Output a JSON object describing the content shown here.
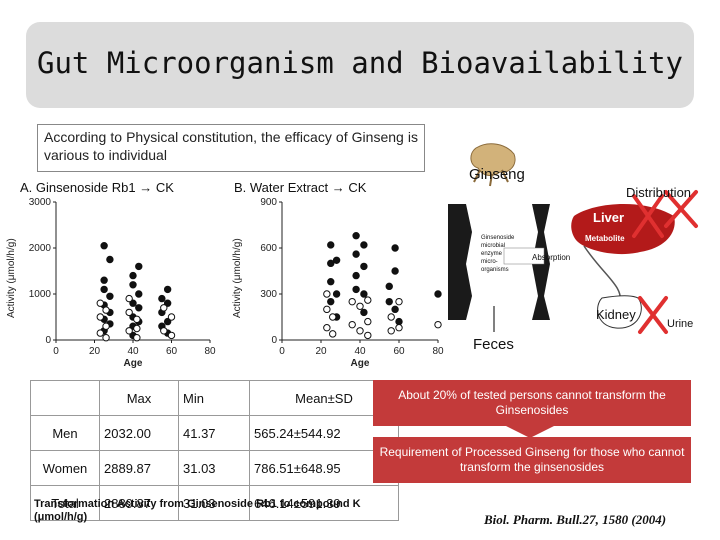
{
  "title": "Gut Microorganism and Bioavailability",
  "intro": "According to Physical constitution, the efficacy of Ginseng is various to individual",
  "chart_data": [
    {
      "type": "scatter",
      "title": "A. Ginsenoside Rb1 → CK",
      "xlabel": "Age",
      "ylabel": "Activity (μmol/h/g)",
      "xticks": [
        "0",
        "20",
        "40",
        "60",
        "80"
      ],
      "yticks": [
        "0",
        "1000",
        "2000",
        "3000"
      ],
      "xlim": [
        0,
        80
      ],
      "ylim": [
        0,
        3000
      ],
      "series": [
        {
          "marker": "filled",
          "points": [
            [
              25,
              2050
            ],
            [
              25,
              1300
            ],
            [
              25,
              1100
            ],
            [
              25,
              760
            ],
            [
              25,
              450
            ],
            [
              25,
              200
            ],
            [
              28,
              1750
            ],
            [
              28,
              950
            ],
            [
              28,
              600
            ],
            [
              28,
              350
            ],
            [
              40,
              1400
            ],
            [
              40,
              1200
            ],
            [
              40,
              800
            ],
            [
              40,
              500
            ],
            [
              40,
              300
            ],
            [
              40,
              100
            ],
            [
              43,
              1600
            ],
            [
              43,
              1000
            ],
            [
              43,
              700
            ],
            [
              43,
              400
            ],
            [
              55,
              900
            ],
            [
              55,
              600
            ],
            [
              55,
              300
            ],
            [
              58,
              1100
            ],
            [
              58,
              800
            ],
            [
              58,
              400
            ],
            [
              58,
              150
            ]
          ]
        },
        {
          "marker": "open",
          "points": [
            [
              23,
              800
            ],
            [
              23,
              500
            ],
            [
              23,
              150
            ],
            [
              26,
              650
            ],
            [
              26,
              300
            ],
            [
              26,
              50
            ],
            [
              38,
              900
            ],
            [
              38,
              600
            ],
            [
              38,
              200
            ],
            [
              42,
              450
            ],
            [
              42,
              250
            ],
            [
              42,
              50
            ],
            [
              56,
              700
            ],
            [
              56,
              200
            ],
            [
              60,
              500
            ],
            [
              60,
              100
            ]
          ]
        }
      ]
    },
    {
      "type": "scatter",
      "title": "B. Water Extract → CK",
      "xlabel": "Age",
      "ylabel": "Activity (μmol/h/g)",
      "xticks": [
        "0",
        "20",
        "40",
        "60",
        "80"
      ],
      "yticks": [
        "0",
        "300",
        "600",
        "900"
      ],
      "xlim": [
        0,
        80
      ],
      "ylim": [
        0,
        900
      ],
      "series": [
        {
          "marker": "filled",
          "points": [
            [
              25,
              620
            ],
            [
              25,
              500
            ],
            [
              25,
              380
            ],
            [
              25,
              250
            ],
            [
              28,
              520
            ],
            [
              28,
              300
            ],
            [
              28,
              150
            ],
            [
              38,
              680
            ],
            [
              38,
              560
            ],
            [
              38,
              420
            ],
            [
              38,
              330
            ],
            [
              42,
              620
            ],
            [
              42,
              480
            ],
            [
              42,
              300
            ],
            [
              42,
              180
            ],
            [
              55,
              350
            ],
            [
              55,
              250
            ],
            [
              58,
              600
            ],
            [
              58,
              450
            ],
            [
              58,
              200
            ],
            [
              60,
              120
            ],
            [
              80,
              300
            ]
          ]
        },
        {
          "marker": "open",
          "points": [
            [
              23,
              300
            ],
            [
              23,
              200
            ],
            [
              23,
              80
            ],
            [
              26,
              150
            ],
            [
              26,
              40
            ],
            [
              36,
              250
            ],
            [
              36,
              100
            ],
            [
              40,
              220
            ],
            [
              40,
              60
            ],
            [
              44,
              260
            ],
            [
              44,
              120
            ],
            [
              44,
              30
            ],
            [
              56,
              150
            ],
            [
              56,
              60
            ],
            [
              60,
              250
            ],
            [
              60,
              80
            ],
            [
              80,
              100
            ]
          ]
        }
      ]
    }
  ],
  "diagram": {
    "ginseng_label": "Ginseng",
    "distribution_label": "Distribution",
    "liver_label": "Liver",
    "metabolite_label": "Metabolite",
    "intestine_text_1": "Ginsenoside",
    "intestine_text_2": "microbial",
    "intestine_text_3": "enzyme",
    "intestine_text_4": "micro-",
    "intestine_text_5": "organisms",
    "absorption_label": "Absorption",
    "kidney_label": "Kidney",
    "urine_label": "Urine",
    "feces_label": "Feces"
  },
  "table": {
    "headers": [
      "",
      "Max",
      "Min",
      "Mean±SD"
    ],
    "rows": [
      [
        "Men",
        "2032.00",
        "41.37",
        "565.24±544.92"
      ],
      [
        "Women",
        "2889.87",
        "31.03",
        "786.51±648.95"
      ],
      [
        "Total",
        "2889.87",
        "31.03",
        "646.14±591.39"
      ]
    ]
  },
  "caption": "Transformation Activity from Ginsenoside Rb1 to compound K (μmol/h/g)",
  "box1": "About 20% of tested persons cannot transform the Ginsenosides",
  "box2": "Requirement of Processed Ginseng for those who cannot transform the ginsenosides",
  "reference": "Biol. Pharm. Bull.27, 1580 (2004)",
  "colors": {
    "accent_red": "#c33a3a",
    "title_bg": "#dcdcdc",
    "cross_red": "#e03030"
  }
}
